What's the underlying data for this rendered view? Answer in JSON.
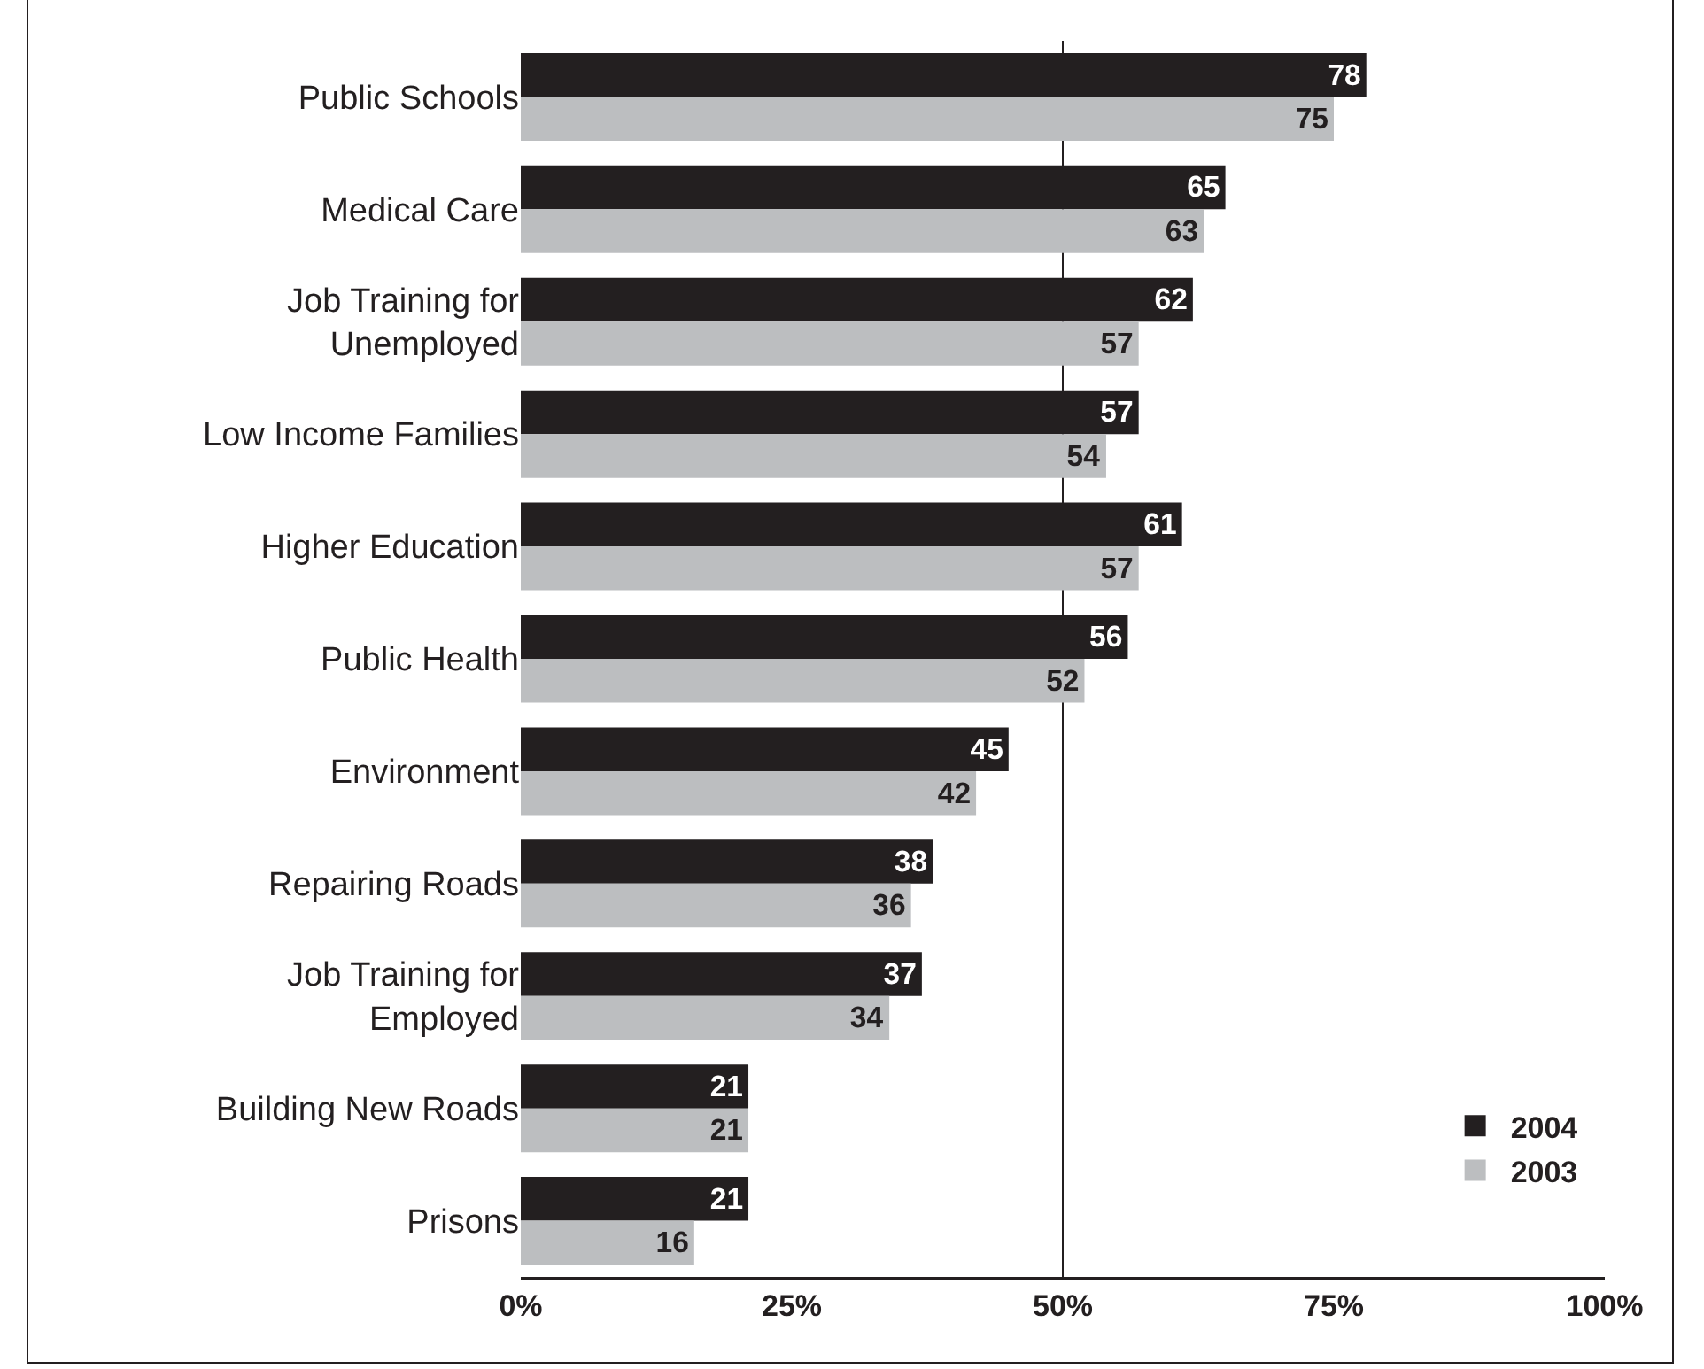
{
  "chart_data": {
    "type": "bar",
    "orientation": "horizontal",
    "categories": [
      "Public Schools",
      "Medical Care",
      "Job Training for Unemployed",
      "Low Income Families",
      "Higher Education",
      "Public Health",
      "Environment",
      "Repairing Roads",
      "Job Training for Employed",
      "Building New Roads",
      "Prisons"
    ],
    "series": [
      {
        "name": "2004",
        "color": "#231f20",
        "values": [
          78,
          65,
          62,
          57,
          61,
          56,
          45,
          38,
          37,
          21,
          21
        ]
      },
      {
        "name": "2003",
        "color": "#bcbec0",
        "values": [
          75,
          63,
          57,
          54,
          57,
          52,
          42,
          36,
          34,
          21,
          16
        ]
      }
    ],
    "xlim": [
      0,
      100
    ],
    "xticks": [
      {
        "value": 0,
        "label": "0%"
      },
      {
        "value": 25,
        "label": "25%"
      },
      {
        "value": 50,
        "label": "50%"
      },
      {
        "value": 75,
        "label": "75%"
      },
      {
        "value": 100,
        "label": "100%"
      }
    ],
    "ref_lines": [
      {
        "axis": "x",
        "value": 50,
        "color": "#231f20"
      }
    ],
    "data_labels": true,
    "grid": false,
    "legend": "bottom right"
  }
}
